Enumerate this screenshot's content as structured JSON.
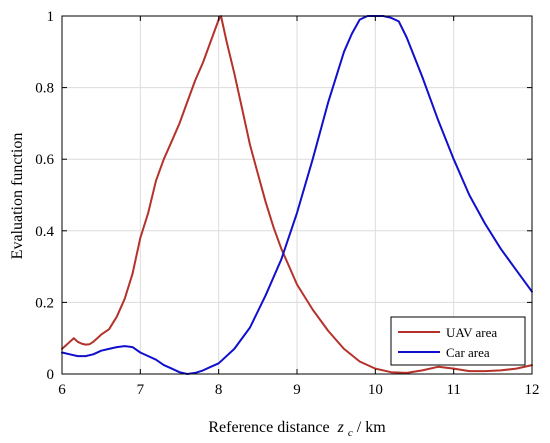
{
  "chart_data": {
    "type": "line",
    "xlabel": "Reference distance",
    "xlabel_var": "z",
    "xlabel_sub": "c",
    "xlabel_unit": " /  km",
    "ylabel": "Evaluation function",
    "xlim": [
      6,
      12
    ],
    "ylim": [
      0,
      1
    ],
    "x_ticks": [
      "6",
      "7",
      "8",
      "9",
      "10",
      "11",
      "12"
    ],
    "y_ticks": [
      "0",
      "0.2",
      "0.4",
      "0.6",
      "0.8",
      "1"
    ],
    "grid": true,
    "legend_position": "bottom-right",
    "series": [
      {
        "name": "UAV area",
        "color": "#b5322a",
        "x": [
          6.0,
          6.05,
          6.1,
          6.15,
          6.2,
          6.25,
          6.3,
          6.35,
          6.4,
          6.45,
          6.5,
          6.6,
          6.7,
          6.8,
          6.9,
          7.0,
          7.1,
          7.2,
          7.3,
          7.4,
          7.5,
          7.6,
          7.7,
          7.8,
          7.9,
          8.0,
          8.03,
          8.1,
          8.2,
          8.3,
          8.4,
          8.5,
          8.6,
          8.7,
          8.8,
          8.9,
          9.0,
          9.2,
          9.4,
          9.6,
          9.8,
          10.0,
          10.2,
          10.4,
          10.6,
          10.8,
          11.0,
          11.2,
          11.4,
          11.6,
          11.8,
          12.0
        ],
        "y": [
          0.07,
          0.08,
          0.09,
          0.1,
          0.09,
          0.085,
          0.082,
          0.083,
          0.09,
          0.1,
          0.11,
          0.125,
          0.16,
          0.21,
          0.28,
          0.38,
          0.45,
          0.54,
          0.6,
          0.65,
          0.7,
          0.76,
          0.82,
          0.87,
          0.93,
          0.99,
          1.0,
          0.93,
          0.84,
          0.74,
          0.64,
          0.56,
          0.48,
          0.41,
          0.35,
          0.3,
          0.25,
          0.18,
          0.12,
          0.07,
          0.035,
          0.015,
          0.005,
          0.003,
          0.01,
          0.02,
          0.015,
          0.008,
          0.008,
          0.01,
          0.015,
          0.025
        ]
      },
      {
        "name": "Car area",
        "color": "#1010cc",
        "x": [
          6.0,
          6.1,
          6.2,
          6.3,
          6.4,
          6.5,
          6.6,
          6.7,
          6.8,
          6.9,
          7.0,
          7.1,
          7.2,
          7.3,
          7.4,
          7.5,
          7.6,
          7.7,
          7.8,
          7.9,
          8.0,
          8.2,
          8.4,
          8.6,
          8.8,
          9.0,
          9.2,
          9.4,
          9.6,
          9.7,
          9.8,
          9.9,
          10.0,
          10.1,
          10.2,
          10.3,
          10.4,
          10.6,
          10.8,
          11.0,
          11.2,
          11.4,
          11.6,
          11.8,
          12.0
        ],
        "y": [
          0.06,
          0.055,
          0.05,
          0.05,
          0.055,
          0.065,
          0.07,
          0.075,
          0.078,
          0.075,
          0.06,
          0.05,
          0.04,
          0.025,
          0.015,
          0.005,
          0.0,
          0.003,
          0.01,
          0.02,
          0.03,
          0.07,
          0.13,
          0.22,
          0.32,
          0.45,
          0.6,
          0.76,
          0.9,
          0.95,
          0.99,
          1.0,
          1.0,
          1.0,
          0.995,
          0.985,
          0.94,
          0.83,
          0.71,
          0.6,
          0.5,
          0.42,
          0.35,
          0.29,
          0.23
        ]
      }
    ]
  }
}
